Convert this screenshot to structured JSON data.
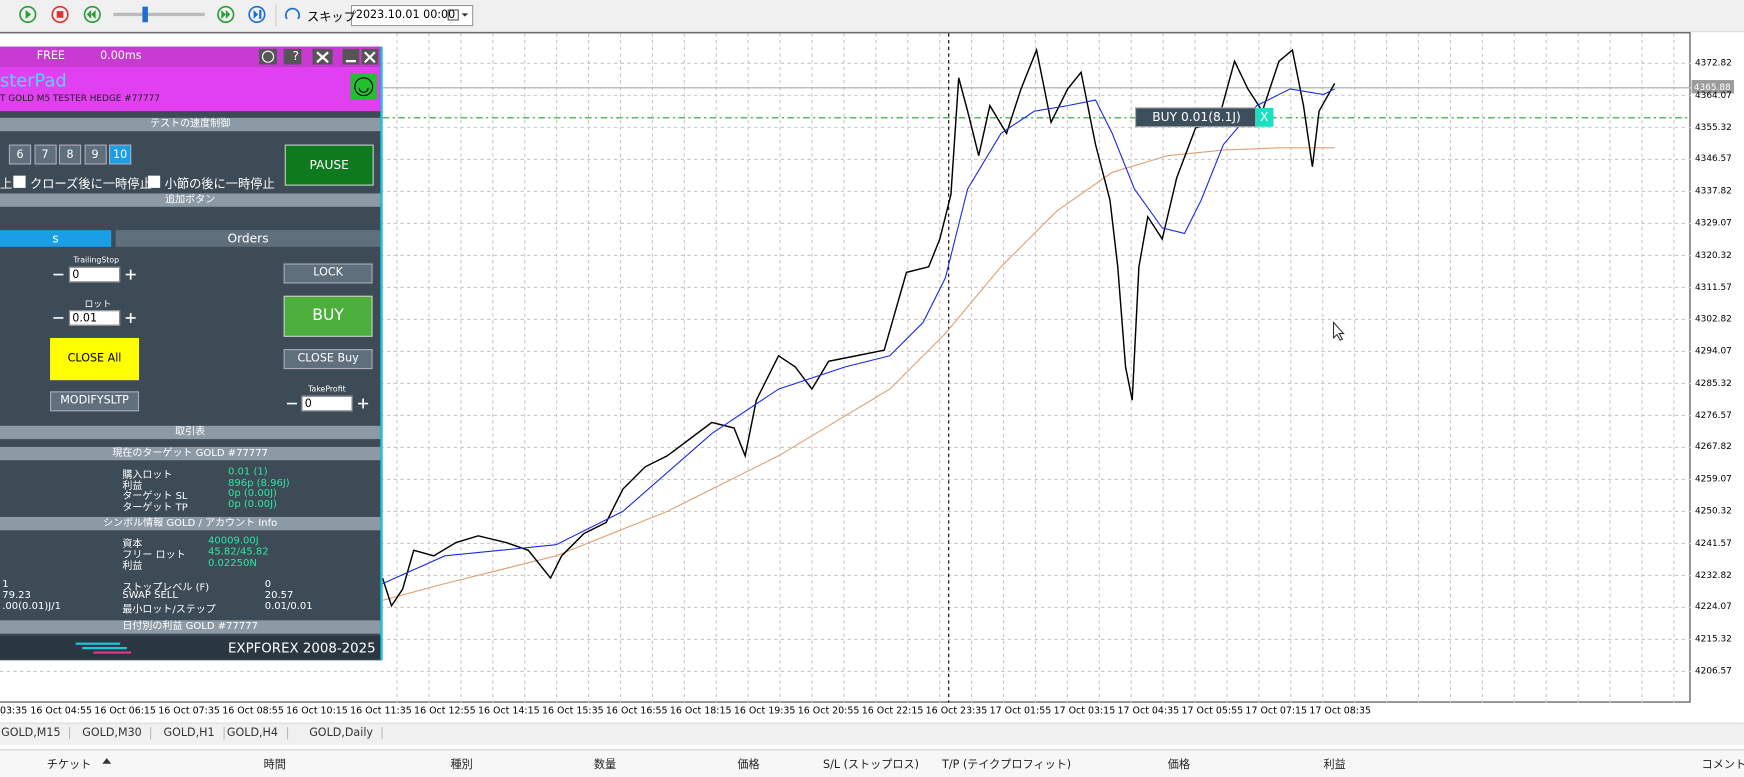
{
  "toolbar": {
    "skip": "スキップ",
    "date": "2023.10.01 00:00"
  },
  "panel": {
    "status": "FREE",
    "latency": "0.00ms",
    "help": "?",
    "title": "sterPad",
    "subtitle": "T GOLD M5 TESTER HEDGE  #77777",
    "speed_header": "テストの速度制御",
    "speeds": [
      "6",
      "7",
      "8",
      "9",
      "10"
    ],
    "pause": "PAUSE",
    "check_prefix": "上",
    "check_close": "クローズ後に一時停止",
    "check_bar": "小節の後に一時停止",
    "extra_header": "追加ボタン",
    "tab_left": "s",
    "tab_orders": "Orders",
    "trailing_label": "TrailingStop",
    "trailing_value": "0",
    "lock": "LOCK",
    "lot_label": "ロット",
    "lot_value": "0.01",
    "buy": "BUY",
    "close_all": "CLOSE All",
    "close_buy": "CLOSE Buy",
    "tp_label": "TakeProfit",
    "tp_value": "0",
    "modify": "MODIFYSLTP",
    "trades_header": "取引表",
    "target_header": "現在のターゲット GOLD  #77777",
    "target_rows": [
      [
        "購入ロット",
        "0.01 (1)"
      ],
      [
        "利益",
        "896p (8.96J)"
      ],
      [
        "ターゲット SL",
        "0p (0.00J)"
      ],
      [
        "ターゲット TP",
        "0p (0.00J)"
      ]
    ],
    "symbol_header": "シンボル情報 GOLD / アカウント Info",
    "account_rows": [
      [
        "資本",
        "40009.00J"
      ],
      [
        "フリー ロット",
        "45.82/45.82"
      ],
      [
        "利益",
        "0.02250N"
      ]
    ],
    "symbol_rows": [
      [
        "1",
        "ストップレベル (F)",
        "0"
      ],
      [
        "79.23",
        "SWAP SELL",
        "20.57"
      ],
      [
        ".00(0.01)J/1",
        "最小ロット/ステップ",
        "0.01/0.01"
      ]
    ],
    "daily_header": "日付別の利益 GOLD  #77777",
    "footer": "EXPFOREX 2008-2025"
  },
  "chart": {
    "price_labels": [
      "4372.82",
      "4364.07",
      "4355.32",
      "4346.57",
      "4337.82",
      "4329.07",
      "4320.32",
      "4311.57",
      "4302.82",
      "4294.07",
      "4285.32",
      "4276.57",
      "4267.82",
      "4259.07",
      "4250.32",
      "4241.57",
      "4232.82",
      "4224.07",
      "4215.32",
      "4206.57"
    ],
    "current_price": "4365.88",
    "time_labels": [
      "03:35",
      "16 Oct 04:55",
      "16 Oct 06:15",
      "16 Oct 07:35",
      "16 Oct 08:55",
      "16 Oct 10:15",
      "16 Oct 11:35",
      "16 Oct 12:55",
      "16 Oct 14:15",
      "16 Oct 15:35",
      "16 Oct 16:55",
      "16 Oct 18:15",
      "16 Oct 19:35",
      "16 Oct 20:55",
      "16 Oct 22:15",
      "16 Oct 23:35",
      "17 Oct 01:55",
      "17 Oct 03:15",
      "17 Oct 04:35",
      "17 Oct 05:55",
      "17 Oct 07:15",
      "17 Oct 08:35"
    ],
    "order_label": "BUY 0.01(8.1J)",
    "order_close": "X"
  },
  "tabs": [
    "GOLD,M15",
    "GOLD,M30",
    "GOLD,H1",
    "GOLD,H4",
    "GOLD,Daily"
  ],
  "table": {
    "headers": [
      "チケット",
      "時間",
      "種別",
      "数量",
      "価格",
      "S/L (ストップロス)",
      "T/P (テイクプロフィット)",
      "価格",
      "利益",
      "コメント"
    ]
  }
}
